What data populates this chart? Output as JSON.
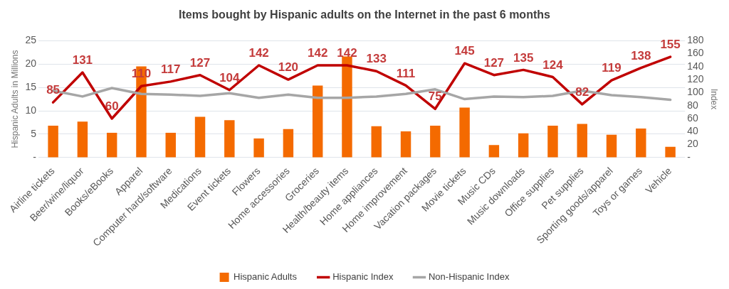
{
  "chart_data": {
    "type": "bar",
    "title": "Items bought by Hispanic adults on the Internet in the past 6 months",
    "categories": [
      "Airline tickets",
      "Beer/wine/liquor",
      "Books/eBooks",
      "Apparel",
      "Computer hard/software",
      "Medications",
      "Event tickets",
      "Flowers",
      "Home accessories",
      "Groceries",
      "Health/beauty items",
      "Home appliances",
      "Home improvement",
      "Vacation packages",
      "Movie tickets",
      "Music CDs",
      "Music downloads",
      "Office supplies",
      "Pet supplies",
      "Sporting goods/apparel",
      "Toys or games",
      "Vehicle"
    ],
    "series": [
      {
        "name": "Hispanic Adults",
        "color": "#f46a00",
        "values": [
          6.8,
          7.7,
          5.3,
          19.5,
          5.3,
          8.7,
          8.0,
          4.1,
          6.1,
          15.4,
          21.6,
          6.7,
          5.6,
          6.8,
          10.7,
          2.7,
          5.2,
          6.8,
          7.2,
          4.9,
          6.2,
          2.3
        ]
      },
      {
        "name": "Hispanic Index",
        "type": "line",
        "axis": "y2",
        "color": "#c00000",
        "values": [
          85,
          131,
          60,
          110,
          117,
          127,
          104,
          142,
          120,
          142,
          142,
          133,
          111,
          75,
          145,
          127,
          135,
          124,
          82,
          119,
          138,
          155
        ],
        "value_labels": [
          "85",
          "131",
          "60",
          "110",
          "117",
          "127",
          "104",
          "142",
          "120",
          "142",
          "142",
          "133",
          "111",
          "75",
          "145",
          "127",
          "135",
          "124",
          "82",
          "119",
          "138",
          "155"
        ]
      },
      {
        "name": "Non-Hispanic Index",
        "type": "line",
        "axis": "y2",
        "color": "#a6a6a6",
        "values": [
          103,
          94,
          107,
          98,
          97,
          95,
          99,
          92,
          97,
          92,
          92,
          94,
          98,
          105,
          90,
          94,
          93,
          95,
          103,
          96,
          93,
          89
        ]
      }
    ],
    "ylabel": "Hispanic Adults in Millions",
    "y2label": "Index",
    "ylim": [
      0,
      25
    ],
    "yticks": [
      {
        "value": 0,
        "label": "-"
      },
      5,
      10,
      15,
      20,
      25
    ],
    "y2lim": [
      0,
      180
    ],
    "y2ticks": [
      {
        "value": 0,
        "label": "-"
      },
      20,
      40,
      60,
      80,
      100,
      120,
      140,
      160,
      180
    ],
    "grid": "y",
    "legend": "bottom",
    "marker": "none",
    "line_style": "solid"
  }
}
